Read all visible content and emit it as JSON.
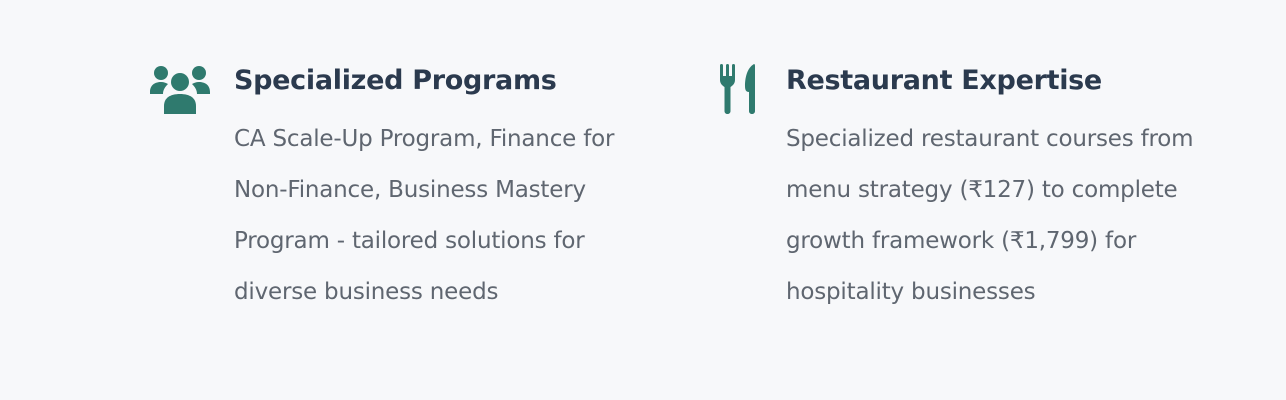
{
  "colors": {
    "background": "#f7f8fa",
    "icon": "#2f7a6e",
    "title": "#2b3a4e",
    "body_text": "#5f6670"
  },
  "features": [
    {
      "icon": "users-group-icon",
      "title": "Specialized Programs",
      "description": "CA Scale-Up Program, Finance for Non-Finance, Business Mastery Program - tailored solutions for diverse business needs"
    },
    {
      "icon": "fork-knife-icon",
      "title": "Restaurant Expertise",
      "description": "Specialized restaurant courses from menu strategy (₹127) to complete growth framework (₹1,799) for hospitality businesses"
    }
  ]
}
